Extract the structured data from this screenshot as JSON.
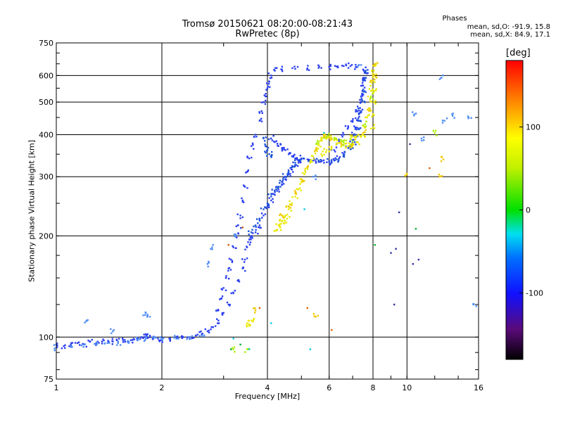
{
  "chart_data": {
    "type": "scatter",
    "title": "Tromsø 20150621 08:20:00-08:21:43",
    "subtitle": "RwPretec (8p)",
    "xlabel": "Frequency [MHz]",
    "ylabel": "Stationary phase Virtual Height [km]",
    "x_scale": "log",
    "y_scale": "log",
    "xlim": [
      1,
      16
    ],
    "ylim": [
      75,
      750
    ],
    "x_ticks": [
      1,
      2,
      4,
      6,
      8,
      10,
      16
    ],
    "x_tick_labels": [
      "1",
      "2",
      "4",
      "6",
      "8",
      "10",
      "16"
    ],
    "y_ticks": [
      75,
      100,
      200,
      300,
      400,
      500,
      600,
      750
    ],
    "y_tick_labels": [
      "75",
      "100",
      "200",
      "300",
      "400",
      "500",
      "600",
      "750"
    ],
    "grid": true,
    "phases": {
      "title": "Phases",
      "o_mode": "mean, sd,O: -91.9, 15.8",
      "x_mode": "mean, sd,X:  84.9, 17.1"
    },
    "colorbar": {
      "label": "[deg]",
      "range": [
        -180,
        180
      ],
      "ticks": [
        100,
        0,
        -100
      ],
      "tick_labels": [
        "100",
        "0",
        "-100"
      ]
    },
    "series": [
      {
        "mode": "O",
        "phase": -100,
        "color": "#2a3ff0",
        "points": [
          [
            1.0,
            95
          ],
          [
            1.05,
            94
          ],
          [
            1.1,
            95
          ],
          [
            1.15,
            96
          ],
          [
            1.2,
            95
          ],
          [
            1.25,
            97
          ],
          [
            1.3,
            96
          ],
          [
            1.35,
            97
          ],
          [
            1.4,
            96
          ],
          [
            1.45,
            97
          ],
          [
            1.5,
            97
          ],
          [
            1.55,
            98
          ],
          [
            1.6,
            97
          ],
          [
            1.65,
            98
          ],
          [
            1.7,
            99
          ],
          [
            1.75,
            100
          ],
          [
            1.8,
            102
          ],
          [
            1.85,
            101
          ],
          [
            1.9,
            100
          ],
          [
            1.95,
            99
          ],
          [
            2.0,
            98
          ],
          [
            2.1,
            99
          ],
          [
            2.2,
            99
          ],
          [
            2.3,
            100
          ],
          [
            2.4,
            100
          ],
          [
            2.5,
            101
          ],
          [
            2.6,
            102
          ],
          [
            2.7,
            104
          ],
          [
            2.8,
            107
          ],
          [
            2.9,
            112
          ],
          [
            3.0,
            118
          ],
          [
            3.1,
            125
          ],
          [
            3.2,
            135
          ],
          [
            3.3,
            147
          ],
          [
            3.4,
            160
          ],
          [
            3.45,
            170
          ],
          [
            3.5,
            185
          ],
          [
            3.55,
            195
          ],
          [
            3.6,
            200
          ],
          [
            3.7,
            205
          ],
          [
            3.8,
            215
          ],
          [
            3.9,
            230
          ],
          [
            4.0,
            245
          ],
          [
            4.1,
            255
          ],
          [
            4.2,
            265
          ],
          [
            4.3,
            275
          ],
          [
            4.4,
            285
          ],
          [
            4.5,
            295
          ],
          [
            4.6,
            305
          ],
          [
            4.7,
            315
          ],
          [
            4.8,
            325
          ],
          [
            4.9,
            335
          ],
          [
            5.0,
            340
          ],
          [
            5.2,
            338
          ],
          [
            5.4,
            335
          ],
          [
            5.6,
            332
          ],
          [
            5.8,
            330
          ],
          [
            6.0,
            332
          ],
          [
            6.2,
            335
          ],
          [
            6.4,
            340
          ],
          [
            6.6,
            350
          ],
          [
            6.8,
            365
          ],
          [
            7.0,
            385
          ],
          [
            7.1,
            400
          ],
          [
            7.2,
            420
          ],
          [
            7.25,
            440
          ],
          [
            7.3,
            460
          ],
          [
            7.35,
            480
          ],
          [
            7.4,
            500
          ],
          [
            7.45,
            530
          ],
          [
            7.5,
            560
          ],
          [
            7.55,
            590
          ],
          [
            7.6,
            610
          ],
          [
            7.5,
            625
          ],
          [
            7.2,
            635
          ],
          [
            6.9,
            640
          ],
          [
            6.6,
            640
          ],
          [
            6.3,
            638
          ],
          [
            6.0,
            636
          ],
          [
            5.6,
            632
          ],
          [
            5.2,
            630
          ],
          [
            4.8,
            628
          ],
          [
            4.4,
            625
          ],
          [
            4.2,
            620
          ],
          [
            4.1,
            600
          ],
          [
            4.05,
            575
          ],
          [
            4.0,
            550
          ],
          [
            3.95,
            520
          ],
          [
            3.9,
            500
          ],
          [
            3.85,
            470
          ],
          [
            3.8,
            440
          ],
          [
            3.7,
            400
          ],
          [
            3.6,
            370
          ],
          [
            3.55,
            340
          ],
          [
            3.5,
            310
          ],
          [
            3.45,
            280
          ],
          [
            3.4,
            255
          ],
          [
            3.35,
            230
          ],
          [
            3.3,
            215
          ],
          [
            3.25,
            200
          ],
          [
            3.2,
            185
          ],
          [
            3.15,
            170
          ],
          [
            3.1,
            160
          ],
          [
            3.05,
            150
          ],
          [
            3.0,
            140
          ],
          [
            2.95,
            130
          ],
          [
            2.9,
            120
          ],
          [
            4.1,
            390
          ],
          [
            4.2,
            380
          ],
          [
            4.3,
            370
          ],
          [
            4.4,
            365
          ],
          [
            4.5,
            360
          ],
          [
            4.6,
            350
          ],
          [
            4.7,
            345
          ],
          [
            4.8,
            340
          ],
          [
            4.9,
            335
          ],
          [
            6.2,
            360
          ],
          [
            6.4,
            380
          ],
          [
            6.6,
            400
          ],
          [
            6.8,
            420
          ],
          [
            7.0,
            440
          ],
          [
            7.2,
            470
          ],
          [
            7.4,
            520
          ],
          [
            7.6,
            580
          ]
        ]
      },
      {
        "mode": "O",
        "phase": -120,
        "color": "#1a52d8",
        "points": [
          [
            3.6,
            205
          ],
          [
            3.7,
            215
          ],
          [
            3.8,
            225
          ],
          [
            3.9,
            240
          ],
          [
            4.0,
            250
          ],
          [
            4.1,
            262
          ],
          [
            4.2,
            270
          ],
          [
            4.3,
            280
          ],
          [
            4.4,
            290
          ],
          [
            4.5,
            300
          ],
          [
            4.6,
            310
          ],
          [
            4.7,
            320
          ],
          [
            4.8,
            330
          ],
          [
            5.0,
            338
          ],
          [
            5.3,
            336
          ],
          [
            5.6,
            333
          ],
          [
            6.0,
            334
          ],
          [
            6.3,
            338
          ],
          [
            6.6,
            348
          ],
          [
            6.9,
            362
          ],
          [
            7.1,
            380
          ],
          [
            7.2,
            395
          ],
          [
            7.3,
            415
          ],
          [
            7.35,
            440
          ],
          [
            7.4,
            470
          ],
          [
            7.45,
            505
          ],
          [
            7.5,
            545
          ],
          [
            7.55,
            580
          ],
          [
            7.6,
            615
          ],
          [
            3.9,
            390
          ],
          [
            3.95,
            370
          ],
          [
            4.0,
            360
          ],
          [
            4.05,
            350
          ],
          [
            4.1,
            345
          ]
        ]
      },
      {
        "mode": "O",
        "phase": -80,
        "color": "#4f8df5",
        "points": [
          [
            1.0,
            93
          ],
          [
            1.1,
            94
          ],
          [
            1.2,
            95
          ],
          [
            1.3,
            95
          ],
          [
            1.4,
            96
          ],
          [
            1.5,
            96
          ],
          [
            1.6,
            97
          ],
          [
            1.7,
            98
          ],
          [
            1.8,
            99
          ],
          [
            1.9,
            100
          ],
          [
            2.0,
            99
          ],
          [
            2.2,
            99
          ],
          [
            2.4,
            100
          ],
          [
            2.6,
            101
          ],
          [
            1.22,
            112
          ],
          [
            1.45,
            104
          ],
          [
            1.8,
            118
          ],
          [
            1.85,
            115
          ],
          [
            2.7,
            165
          ],
          [
            2.78,
            185
          ],
          [
            3.25,
            200
          ],
          [
            5.4,
            300
          ],
          [
            7.3,
            645
          ],
          [
            10.5,
            460
          ],
          [
            12.5,
            590
          ],
          [
            13.5,
            455
          ],
          [
            15.0,
            450
          ],
          [
            15.5,
            125
          ],
          [
            12.8,
            440
          ],
          [
            11.0,
            390
          ]
        ]
      },
      {
        "mode": "X",
        "phase": 90,
        "color": "#e8e800",
        "points": [
          [
            4.3,
            215
          ],
          [
            4.4,
            222
          ],
          [
            4.5,
            230
          ],
          [
            4.6,
            240
          ],
          [
            4.7,
            250
          ],
          [
            4.8,
            262
          ],
          [
            4.9,
            275
          ],
          [
            5.0,
            290
          ],
          [
            5.1,
            305
          ],
          [
            5.2,
            318
          ],
          [
            5.3,
            330
          ],
          [
            5.4,
            345
          ],
          [
            5.5,
            360
          ],
          [
            5.6,
            375
          ],
          [
            5.7,
            388
          ],
          [
            5.8,
            395
          ],
          [
            6.0,
            392
          ],
          [
            6.2,
            385
          ],
          [
            6.4,
            378
          ],
          [
            6.6,
            372
          ],
          [
            6.8,
            370
          ],
          [
            7.0,
            372
          ],
          [
            7.2,
            380
          ],
          [
            7.4,
            395
          ],
          [
            7.6,
            420
          ],
          [
            7.7,
            450
          ],
          [
            7.8,
            480
          ],
          [
            7.85,
            510
          ],
          [
            7.9,
            540
          ],
          [
            7.95,
            570
          ],
          [
            8.0,
            600
          ],
          [
            8.05,
            620
          ],
          [
            8.1,
            640
          ],
          [
            4.25,
            208
          ],
          [
            4.35,
            212
          ],
          [
            4.45,
            218
          ],
          [
            4.55,
            225
          ],
          [
            3.5,
            110
          ],
          [
            3.55,
            108
          ],
          [
            3.6,
            112
          ],
          [
            6.9,
            390
          ],
          [
            7.1,
            395
          ],
          [
            7.5,
            400
          ],
          [
            8.0,
            420
          ],
          [
            8.0,
            460
          ],
          [
            8.05,
            500
          ],
          [
            8.05,
            540
          ],
          [
            5.7,
            350
          ],
          [
            5.9,
            360
          ],
          [
            6.1,
            365
          ]
        ]
      },
      {
        "mode": "X",
        "phase": 110,
        "color": "#f0c800",
        "points": [
          [
            4.4,
            230
          ],
          [
            4.6,
            245
          ],
          [
            4.8,
            268
          ],
          [
            5.0,
            295
          ],
          [
            5.2,
            320
          ],
          [
            5.5,
            362
          ],
          [
            5.8,
            398
          ],
          [
            6.1,
            388
          ],
          [
            6.5,
            374
          ],
          [
            7.0,
            374
          ],
          [
            7.5,
            405
          ],
          [
            7.8,
            470
          ],
          [
            7.95,
            580
          ],
          [
            8.1,
            650
          ],
          [
            3.7,
            120
          ],
          [
            5.5,
            115
          ],
          [
            8.05,
            600
          ],
          [
            10.0,
            305
          ],
          [
            12.7,
            338
          ],
          [
            12.4,
            300
          ]
        ]
      },
      {
        "mode": "X",
        "phase": 70,
        "color": "#a8f000",
        "points": [
          [
            5.6,
            380
          ],
          [
            5.9,
            395
          ],
          [
            6.2,
            388
          ],
          [
            6.6,
            378
          ],
          [
            7.0,
            382
          ],
          [
            7.6,
            430
          ],
          [
            7.9,
            520
          ],
          [
            3.2,
            92
          ],
          [
            3.5,
            92
          ],
          [
            6.5,
            385
          ],
          [
            12.0,
            405
          ]
        ]
      },
      {
        "mode": "misc",
        "phase": -150,
        "color": "#3030a0",
        "points": [
          [
            9.5,
            235
          ],
          [
            10.2,
            375
          ],
          [
            9.3,
            183
          ],
          [
            10.8,
            170
          ],
          [
            9.0,
            178
          ],
          [
            10.4,
            165
          ],
          [
            9.2,
            125
          ]
        ]
      },
      {
        "mode": "misc",
        "phase": 0,
        "color": "#00b030",
        "points": [
          [
            10.6,
            210
          ],
          [
            8.1,
            188
          ],
          [
            3.15,
            92
          ],
          [
            3.35,
            95
          ]
        ]
      },
      {
        "mode": "misc",
        "phase": 140,
        "color": "#e06000",
        "points": [
          [
            3.4,
            212
          ],
          [
            5.2,
            122
          ],
          [
            6.1,
            105
          ],
          [
            11.6,
            318
          ],
          [
            3.1,
            188
          ],
          [
            3.8,
            122
          ]
        ]
      },
      {
        "mode": "misc",
        "phase": -60,
        "color": "#00c8e0",
        "points": [
          [
            5.3,
            92
          ],
          [
            3.55,
            92
          ],
          [
            3.2,
            99
          ],
          [
            4.1,
            110
          ],
          [
            5.1,
            240
          ],
          [
            5.8,
            405
          ]
        ]
      }
    ]
  }
}
